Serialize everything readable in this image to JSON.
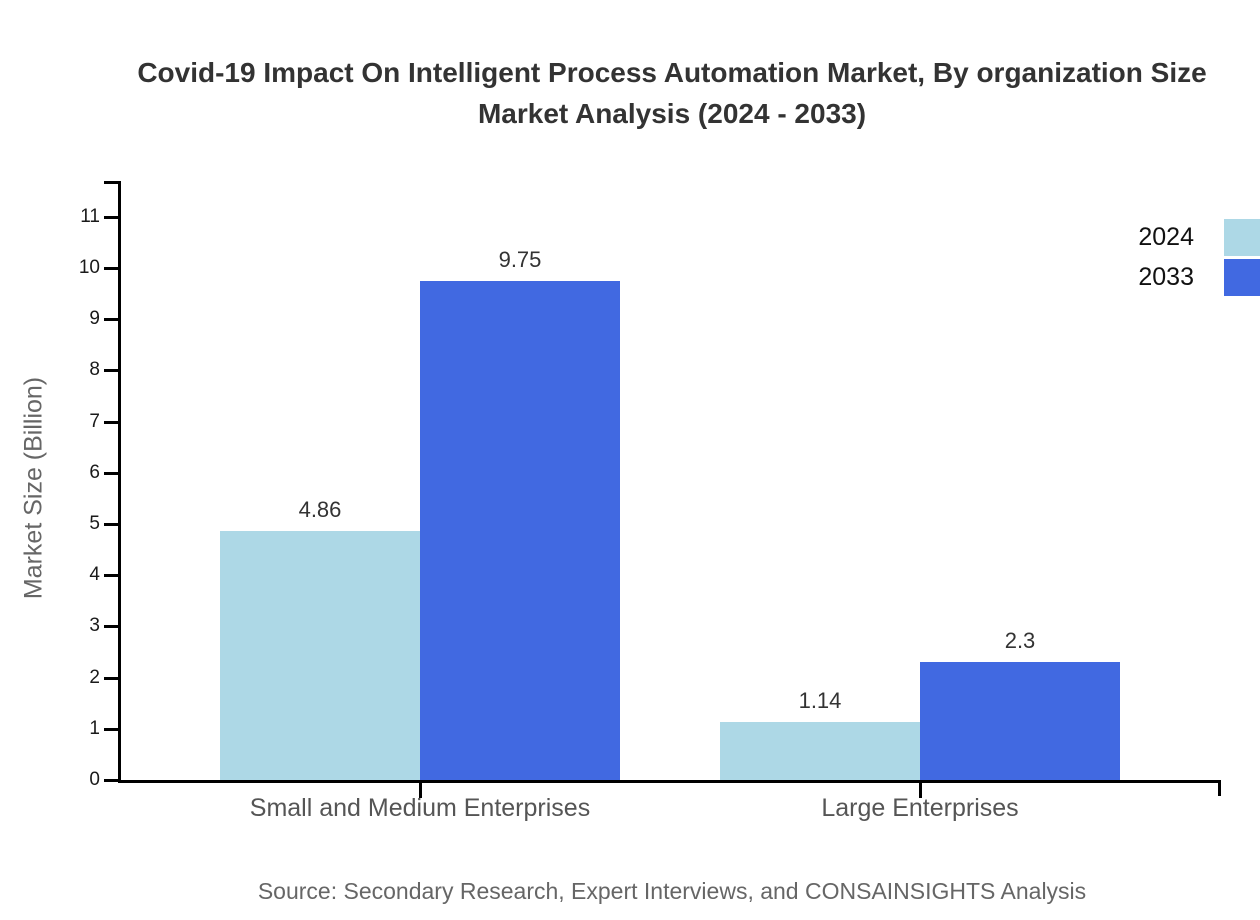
{
  "title": {
    "line1": "Covid-19 Impact On Intelligent Process Automation Market, By organization Size",
    "line2": "Market Analysis (2024 - 2033)"
  },
  "y_axis": {
    "label": "Market Size (Billion)"
  },
  "legend": {
    "items": [
      {
        "label": "2024",
        "color": "#ADD8E6"
      },
      {
        "label": "2033",
        "color": "#4169E1"
      }
    ]
  },
  "source": "Source: Secondary Research, Expert Interviews, and CONSAINSIGHTS Analysis",
  "colors": {
    "bar_2024": "#ADD8E6",
    "bar_2033": "#4169E1",
    "axis": "#000000",
    "title_text": "#333333",
    "muted_text": "#666666"
  },
  "chart_data": {
    "type": "bar",
    "title": "Covid-19 Impact On Intelligent Process Automation Market, By organization Size Market Analysis (2024 - 2033)",
    "categories": [
      "Small and Medium Enterprises",
      "Large Enterprises"
    ],
    "series": [
      {
        "name": "2024",
        "values": [
          4.86,
          1.14
        ],
        "color": "#ADD8E6"
      },
      {
        "name": "2033",
        "values": [
          9.75,
          2.3
        ],
        "color": "#4169E1"
      }
    ],
    "xlabel": "",
    "ylabel": "Market Size (Billion)",
    "ylim": [
      0,
      11.7
    ],
    "yticks": [
      0,
      1,
      2,
      3,
      4,
      5,
      6,
      7,
      8,
      9,
      10,
      11
    ],
    "grid": false,
    "legend_position": "top-right",
    "value_labels": true
  }
}
